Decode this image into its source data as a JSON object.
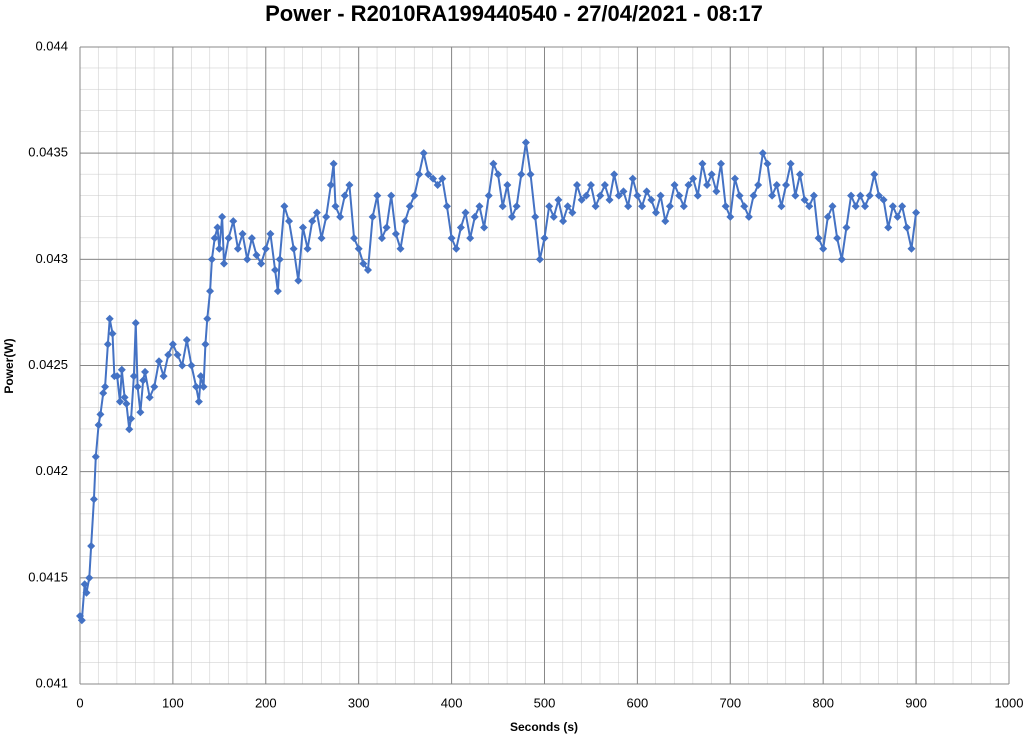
{
  "chart_data": {
    "type": "line",
    "title": "Power - R2010RA199440540 - 27/04/2021 - 08:17",
    "x_label": "Seconds (s)",
    "y_label": "Power(W)",
    "xlim": [
      0,
      1000
    ],
    "xticks": [
      0,
      100,
      200,
      300,
      400,
      500,
      600,
      700,
      800,
      900,
      1000
    ],
    "ylim": [
      0.041,
      0.044
    ],
    "yticks": [
      0.041,
      0.0415,
      0.042,
      0.0425,
      0.043,
      0.0435,
      0.044
    ],
    "grid": true,
    "markers": "diamond",
    "x": [
      0,
      2,
      5,
      7,
      10,
      12,
      15,
      17,
      20,
      22,
      25,
      27,
      30,
      32,
      35,
      37,
      40,
      43,
      45,
      48,
      50,
      53,
      55,
      58,
      60,
      62,
      65,
      68,
      70,
      75,
      80,
      85,
      90,
      95,
      100,
      105,
      110,
      115,
      120,
      125,
      128,
      130,
      133,
      135,
      137,
      140,
      142,
      145,
      148,
      150,
      153,
      155,
      160,
      165,
      170,
      175,
      180,
      185,
      190,
      195,
      200,
      205,
      210,
      213,
      215,
      220,
      225,
      230,
      235,
      240,
      245,
      250,
      255,
      260,
      265,
      270,
      273,
      275,
      280,
      285,
      290,
      295,
      300,
      305,
      310,
      315,
      320,
      325,
      330,
      335,
      340,
      345,
      350,
      355,
      360,
      365,
      370,
      375,
      380,
      385,
      390,
      395,
      400,
      405,
      410,
      415,
      420,
      425,
      430,
      435,
      440,
      445,
      450,
      455,
      460,
      465,
      470,
      475,
      480,
      485,
      490,
      495,
      500,
      505,
      510,
      515,
      520,
      525,
      530,
      535,
      540,
      545,
      550,
      555,
      560,
      565,
      570,
      575,
      580,
      585,
      590,
      595,
      600,
      605,
      610,
      615,
      620,
      625,
      630,
      635,
      640,
      645,
      650,
      655,
      660,
      665,
      670,
      675,
      680,
      685,
      690,
      695,
      700,
      705,
      710,
      715,
      720,
      725,
      730,
      735,
      740,
      745,
      750,
      755,
      760,
      765,
      770,
      775,
      780,
      785,
      790,
      795,
      800,
      805,
      810,
      815,
      820,
      825,
      830,
      835,
      840,
      845,
      850,
      855,
      860,
      865,
      870,
      875,
      880,
      885,
      890,
      895,
      900
    ],
    "series": [
      {
        "name": "Power(W)",
        "color": "#4472c4",
        "values": [
          0.04132,
          0.0413,
          0.04147,
          0.04143,
          0.0415,
          0.04165,
          0.04187,
          0.04207,
          0.04222,
          0.04227,
          0.04237,
          0.0424,
          0.0426,
          0.04272,
          0.04265,
          0.04245,
          0.04245,
          0.04233,
          0.04248,
          0.04235,
          0.04232,
          0.0422,
          0.04225,
          0.04245,
          0.0427,
          0.0424,
          0.04228,
          0.04243,
          0.04247,
          0.04235,
          0.0424,
          0.04252,
          0.04245,
          0.04255,
          0.0426,
          0.04255,
          0.0425,
          0.04262,
          0.0425,
          0.0424,
          0.04233,
          0.04245,
          0.0424,
          0.0426,
          0.04272,
          0.04285,
          0.043,
          0.0431,
          0.04315,
          0.04305,
          0.0432,
          0.04298,
          0.0431,
          0.04318,
          0.04305,
          0.04312,
          0.043,
          0.0431,
          0.04302,
          0.04298,
          0.04305,
          0.04312,
          0.04295,
          0.04285,
          0.043,
          0.04325,
          0.04318,
          0.04305,
          0.0429,
          0.04315,
          0.04305,
          0.04318,
          0.04322,
          0.0431,
          0.0432,
          0.04335,
          0.04345,
          0.04325,
          0.0432,
          0.0433,
          0.04335,
          0.0431,
          0.04305,
          0.04298,
          0.04295,
          0.0432,
          0.0433,
          0.0431,
          0.04315,
          0.0433,
          0.04312,
          0.04305,
          0.04318,
          0.04325,
          0.0433,
          0.0434,
          0.0435,
          0.0434,
          0.04338,
          0.04335,
          0.04338,
          0.04325,
          0.0431,
          0.04305,
          0.04315,
          0.04322,
          0.0431,
          0.0432,
          0.04325,
          0.04315,
          0.0433,
          0.04345,
          0.0434,
          0.04325,
          0.04335,
          0.0432,
          0.04325,
          0.0434,
          0.04355,
          0.0434,
          0.0432,
          0.043,
          0.0431,
          0.04325,
          0.0432,
          0.04328,
          0.04318,
          0.04325,
          0.04322,
          0.04335,
          0.04328,
          0.0433,
          0.04335,
          0.04325,
          0.0433,
          0.04335,
          0.04328,
          0.0434,
          0.0433,
          0.04332,
          0.04325,
          0.04338,
          0.0433,
          0.04325,
          0.04332,
          0.04328,
          0.04322,
          0.0433,
          0.04318,
          0.04325,
          0.04335,
          0.0433,
          0.04325,
          0.04335,
          0.04338,
          0.0433,
          0.04345,
          0.04335,
          0.0434,
          0.04332,
          0.04345,
          0.04325,
          0.0432,
          0.04338,
          0.0433,
          0.04325,
          0.0432,
          0.0433,
          0.04335,
          0.0435,
          0.04345,
          0.0433,
          0.04335,
          0.04325,
          0.04335,
          0.04345,
          0.0433,
          0.0434,
          0.04328,
          0.04325,
          0.0433,
          0.0431,
          0.04305,
          0.0432,
          0.04325,
          0.0431,
          0.043,
          0.04315,
          0.0433,
          0.04325,
          0.0433,
          0.04325,
          0.0433,
          0.0434,
          0.0433,
          0.04328,
          0.04315,
          0.04325,
          0.0432,
          0.04325,
          0.04315,
          0.04305,
          0.04322
        ]
      }
    ]
  }
}
